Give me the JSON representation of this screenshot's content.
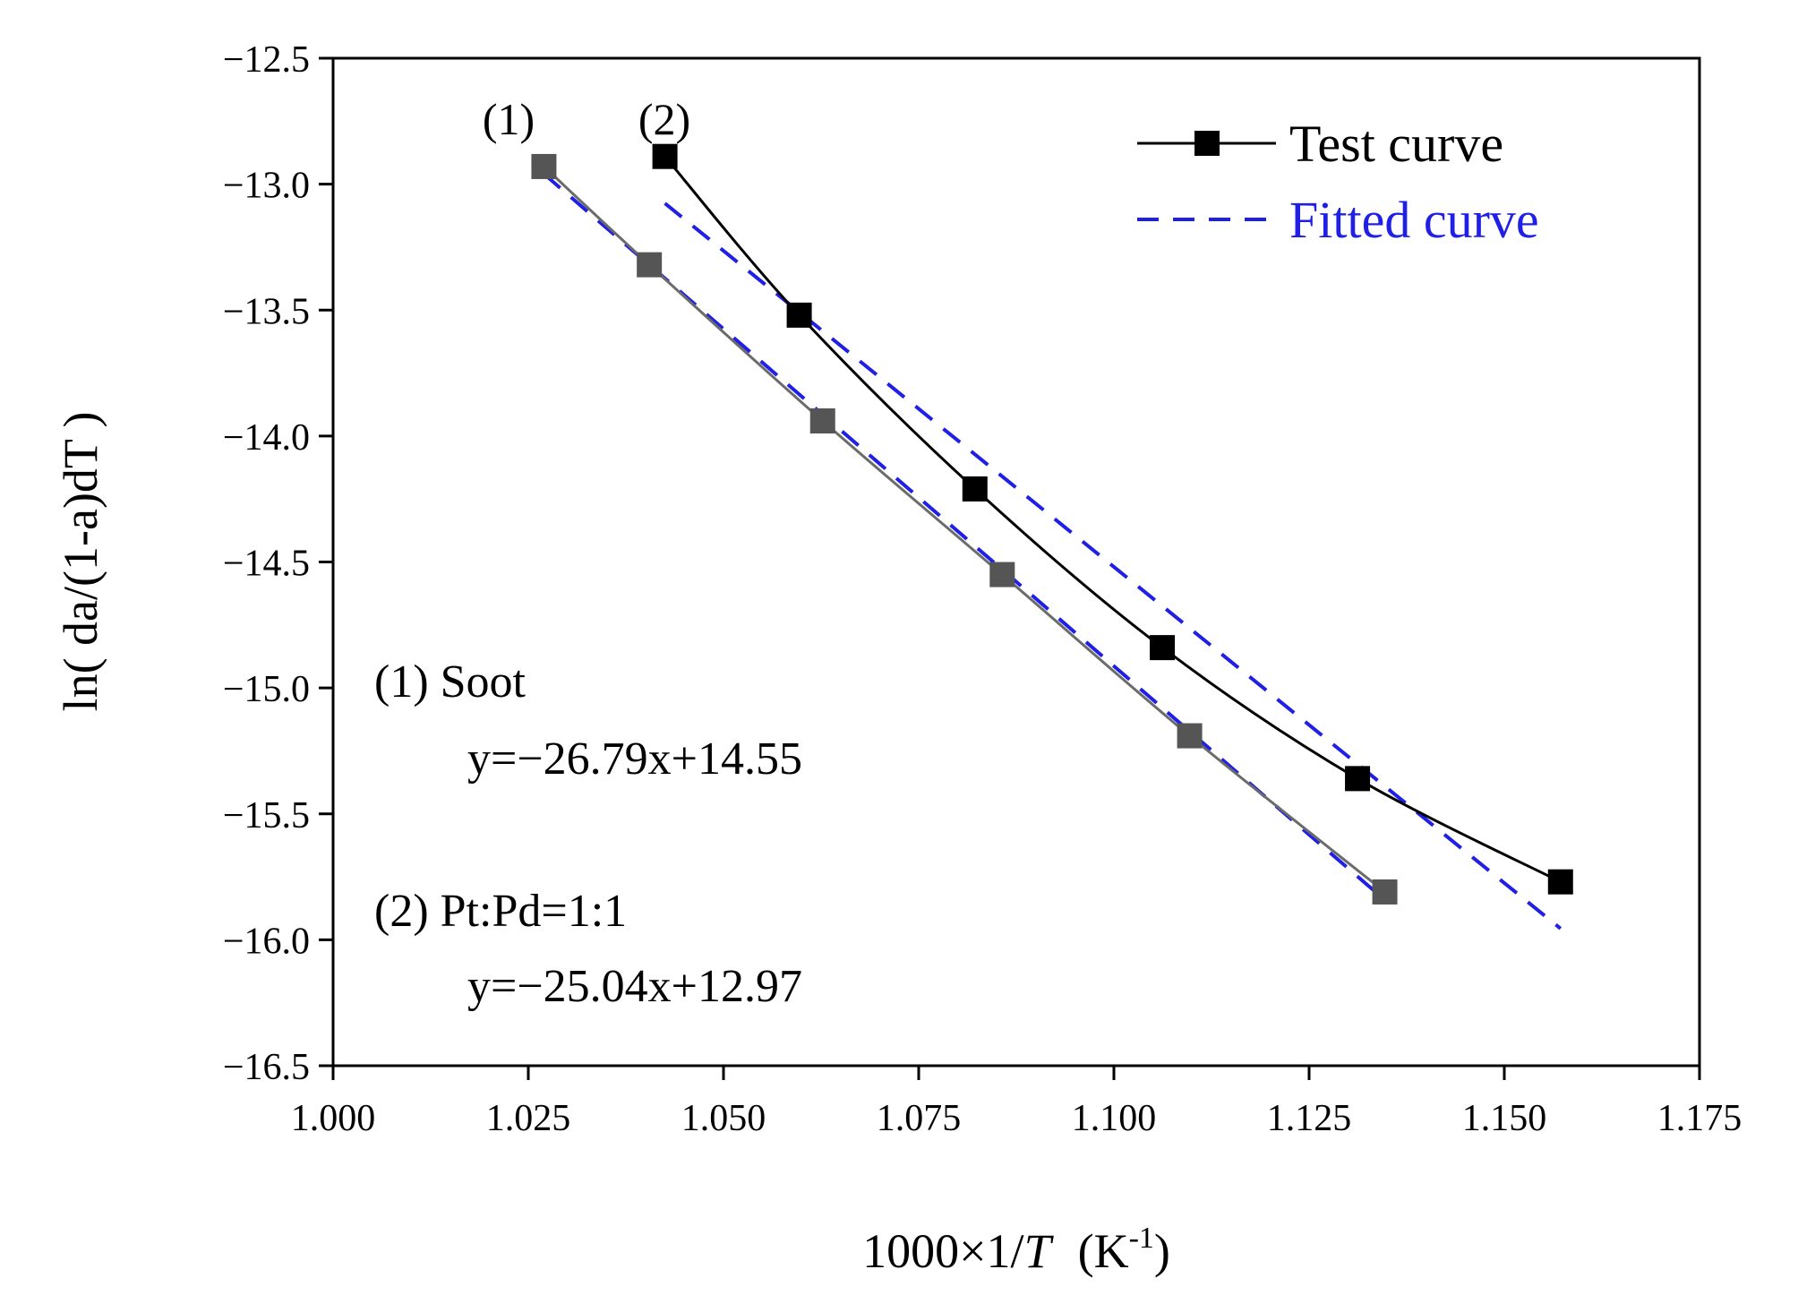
{
  "chart_data": {
    "type": "line",
    "title": "",
    "xlabel": "1000×1/T",
    "xlabel_parts": {
      "prefix": "1000×1/",
      "italic": "T",
      "unit_open": "(K",
      "unit_sup": "-1",
      "unit_close": ")"
    },
    "ylabel": "ln( da/(1-a)dT )",
    "xlim": [
      1.0,
      1.175
    ],
    "ylim": [
      -16.5,
      -12.5
    ],
    "xticks": [
      1.0,
      1.025,
      1.05,
      1.075,
      1.1,
      1.125,
      1.15,
      1.175
    ],
    "xtick_labels": [
      "1.000",
      "1.025",
      "1.050",
      "1.075",
      "1.100",
      "1.125",
      "1.150",
      "1.175"
    ],
    "yticks": [
      -12.5,
      -13.0,
      -13.5,
      -14.0,
      -14.5,
      -15.0,
      -15.5,
      -16.0,
      -16.5
    ],
    "ytick_labels": [
      "−12.5",
      "−13.0",
      "−13.5",
      "−14.0",
      "−14.5",
      "−15.0",
      "−15.5",
      "−16.0",
      "−16.5"
    ],
    "grid": false,
    "legend": {
      "position": "top-right",
      "entries": [
        {
          "label": "Test curve",
          "style": "solid-square",
          "color": "#000000"
        },
        {
          "label": "Fitted curve",
          "style": "dashed",
          "color": "#1f1fe6"
        }
      ]
    },
    "series": [
      {
        "name": "(1) Soot",
        "label": "(1)",
        "color": "#6b6b6b",
        "marker_color": "#555555",
        "x": [
          1.027,
          1.0405,
          1.0627,
          1.0857,
          1.1097,
          1.1347
        ],
        "y": [
          -12.93,
          -13.32,
          -13.94,
          -14.55,
          -15.19,
          -15.81
        ],
        "fit": {
          "slope": -26.79,
          "intercept": 14.55,
          "x_range": [
            1.027,
            1.1347
          ],
          "equation": "y=−26.79x+14.55"
        }
      },
      {
        "name": "(2) Pt:Pd=1:1",
        "label": "(2)",
        "color": "#000000",
        "marker_color": "#000000",
        "x": [
          1.0425,
          1.0597,
          1.0822,
          1.1062,
          1.1312,
          1.1572
        ],
        "y": [
          -12.89,
          -13.52,
          -14.21,
          -14.84,
          -15.36,
          -15.77
        ],
        "fit": {
          "slope": -25.04,
          "intercept": 12.97,
          "x_range": [
            1.0425,
            1.1572
          ],
          "equation": "y=−25.04x+12.97"
        }
      }
    ],
    "annotations": {
      "soot_title": "(1) Soot",
      "soot_eq": "y=−26.79x+14.55",
      "ptpd_title": "(2) Pt:Pd=1:1",
      "ptpd_eq": "y=−25.04x+12.97"
    }
  }
}
